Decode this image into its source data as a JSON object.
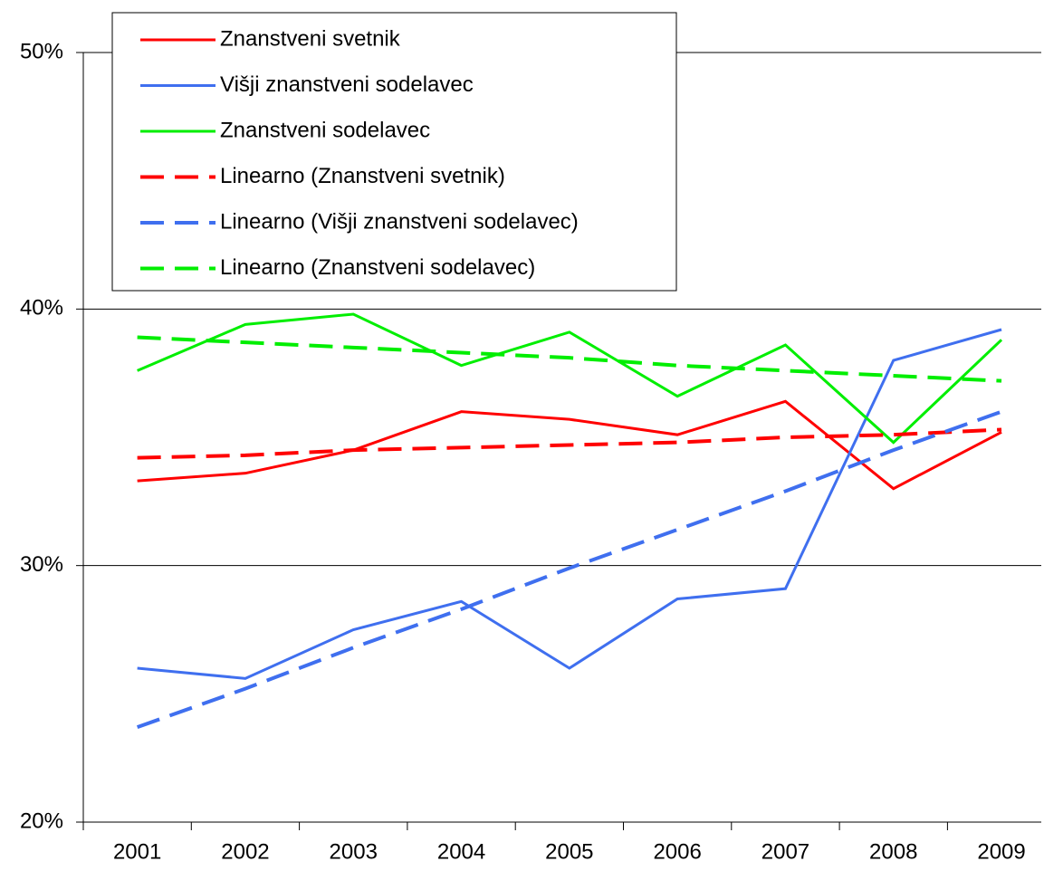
{
  "chart_data": {
    "type": "line",
    "categories": [
      "2001",
      "2002",
      "2003",
      "2004",
      "2005",
      "2006",
      "2007",
      "2008",
      "2009"
    ],
    "series": [
      {
        "name": "Znanstveni svetnik",
        "color": "#ff0000",
        "dashed": false,
        "values": [
          33.3,
          33.6,
          34.5,
          36.0,
          35.7,
          35.1,
          36.4,
          33.0,
          35.2
        ]
      },
      {
        "name": "Višji znanstveni sodelavec",
        "color": "#3f6fef",
        "dashed": false,
        "values": [
          26.0,
          25.6,
          27.5,
          28.6,
          26.0,
          28.7,
          29.1,
          38.0,
          39.2
        ]
      },
      {
        "name": "Znanstveni sodelavec",
        "color": "#00ee00",
        "dashed": false,
        "values": [
          37.6,
          39.4,
          39.8,
          37.8,
          39.1,
          36.6,
          38.6,
          34.8,
          38.8
        ]
      },
      {
        "name": "Linearno (Znanstveni svetnik)",
        "color": "#ff0000",
        "dashed": true,
        "values": [
          34.2,
          34.3,
          34.5,
          34.6,
          34.7,
          34.8,
          35.0,
          35.1,
          35.3
        ]
      },
      {
        "name": "Linearno (Višji znanstveni sodelavec)",
        "color": "#3f6fef",
        "dashed": true,
        "values": [
          23.7,
          25.2,
          26.8,
          28.3,
          29.9,
          31.4,
          32.9,
          34.5,
          36.0
        ]
      },
      {
        "name": "Linearno (Znanstveni sodelavec)",
        "color": "#00ee00",
        "dashed": true,
        "values": [
          38.9,
          38.7,
          38.5,
          38.3,
          38.1,
          37.8,
          37.6,
          37.4,
          37.2
        ]
      }
    ],
    "ylim": [
      20,
      50
    ],
    "yticks": [
      {
        "value": 20,
        "label": "20%"
      },
      {
        "value": 30,
        "label": "30%"
      },
      {
        "value": 40,
        "label": "40%"
      },
      {
        "value": 50,
        "label": "50%"
      }
    ],
    "grid": true,
    "legend": "top-left"
  }
}
